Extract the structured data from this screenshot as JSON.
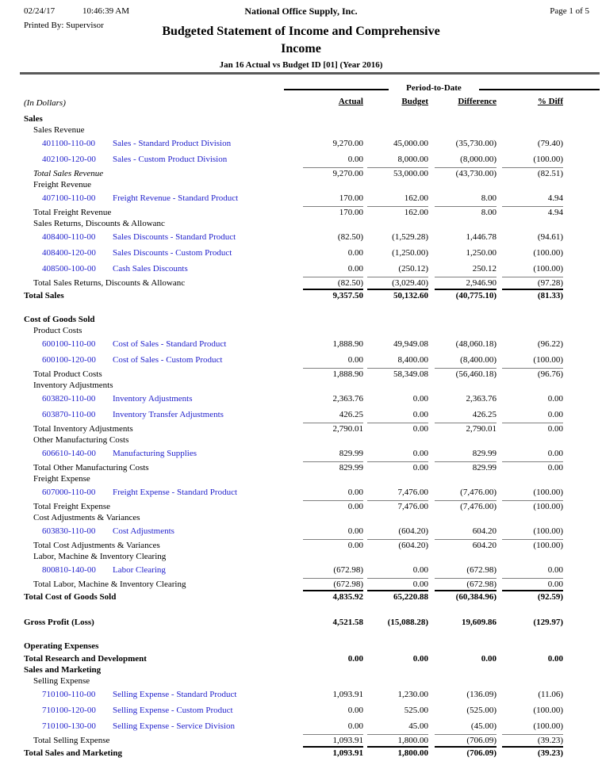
{
  "page_header": {
    "date": "02/24/17",
    "time": "10:46:39 AM",
    "company": "National Office Supply, Inc.",
    "page_label": "Page 1 of 5",
    "printed_by": "Printed By: Supervisor",
    "title_line1": "Budgeted Statement of Income and Comprehensive",
    "title_line2": "Income",
    "subtitle": "Jan 16 Actual vs Budget ID [01] (Year 2016)"
  },
  "table": {
    "group_header": "Period-to-Date",
    "in_dollars_label": "(In Dollars)",
    "columns": [
      "Actual",
      "Budget",
      "Difference",
      "% Diff"
    ],
    "rows": [
      {
        "t": "section",
        "label": "Sales"
      },
      {
        "t": "label",
        "label": "Sales Revenue"
      },
      {
        "t": "account",
        "code": "401100-110-00",
        "label": "Sales - Standard Product Division",
        "v": [
          "9,270.00",
          "45,000.00",
          "(35,730.00)",
          "(79.40)"
        ]
      },
      {
        "t": "account",
        "code": "402100-120-00",
        "label": "Sales - Custom Product Division",
        "v": [
          "0.00",
          "8,000.00",
          "(8,000.00)",
          "(100.00)"
        ]
      },
      {
        "t": "total",
        "label": "Total Sales Revenue",
        "italic": true,
        "line": "thin",
        "v": [
          "9,270.00",
          "53,000.00",
          "(43,730.00)",
          "(82.51)"
        ]
      },
      {
        "t": "label",
        "label": "Freight Revenue"
      },
      {
        "t": "account",
        "code": "407100-110-00",
        "label": "Freight Revenue  - Standard Product",
        "v": [
          "170.00",
          "162.00",
          "8.00",
          "4.94"
        ]
      },
      {
        "t": "total",
        "label": "Total Freight Revenue",
        "line": "thin",
        "v": [
          "170.00",
          "162.00",
          "8.00",
          "4.94"
        ]
      },
      {
        "t": "label",
        "label": "Sales Returns, Discounts & Allowanc"
      },
      {
        "t": "account",
        "code": "408400-110-00",
        "label": "Sales Discounts - Standard Product",
        "v": [
          "(82.50)",
          "(1,529.28)",
          "1,446.78",
          "(94.61)"
        ]
      },
      {
        "t": "account",
        "code": "408400-120-00",
        "label": "Sales Discounts - Custom Product",
        "v": [
          "0.00",
          "(1,250.00)",
          "1,250.00",
          "(100.00)"
        ]
      },
      {
        "t": "account",
        "code": "408500-100-00",
        "label": "Cash Sales Discounts",
        "v": [
          "0.00",
          "(250.12)",
          "250.12",
          "(100.00)"
        ]
      },
      {
        "t": "total",
        "label": "Total Sales Returns, Discounts & Allowanc",
        "line": "thin",
        "v": [
          "(82.50)",
          "(3,029.40)",
          "2,946.90",
          "(97.28)"
        ]
      },
      {
        "t": "grand",
        "label": "Total Sales",
        "line": "thick",
        "v": [
          "9,357.50",
          "50,132.60",
          "(40,775.10)",
          "(81.33)"
        ]
      },
      {
        "t": "spacer"
      },
      {
        "t": "section",
        "label": "Cost of Goods Sold"
      },
      {
        "t": "label",
        "label": "Product Costs"
      },
      {
        "t": "account",
        "code": "600100-110-00",
        "label": "Cost of Sales - Standard Product",
        "v": [
          "1,888.90",
          "49,949.08",
          "(48,060.18)",
          "(96.22)"
        ]
      },
      {
        "t": "account",
        "code": "600100-120-00",
        "label": "Cost of Sales - Custom Product",
        "v": [
          "0.00",
          "8,400.00",
          "(8,400.00)",
          "(100.00)"
        ]
      },
      {
        "t": "total",
        "label": "Total Product Costs",
        "line": "thin",
        "v": [
          "1,888.90",
          "58,349.08",
          "(56,460.18)",
          "(96.76)"
        ]
      },
      {
        "t": "label",
        "label": "Inventory Adjustments"
      },
      {
        "t": "account",
        "code": "603820-110-00",
        "label": "Inventory Adjustments",
        "v": [
          "2,363.76",
          "0.00",
          "2,363.76",
          "0.00"
        ]
      },
      {
        "t": "account",
        "code": "603870-110-00",
        "label": "Inventory Transfer Adjustments",
        "v": [
          "426.25",
          "0.00",
          "426.25",
          "0.00"
        ]
      },
      {
        "t": "total",
        "label": "Total Inventory Adjustments",
        "line": "thin",
        "v": [
          "2,790.01",
          "0.00",
          "2,790.01",
          "0.00"
        ]
      },
      {
        "t": "label",
        "label": "Other Manufacturing Costs"
      },
      {
        "t": "account",
        "code": "606610-140-00",
        "label": "Manufacturing Supplies",
        "v": [
          "829.99",
          "0.00",
          "829.99",
          "0.00"
        ]
      },
      {
        "t": "total",
        "label": "Total Other Manufacturing Costs",
        "line": "thin",
        "v": [
          "829.99",
          "0.00",
          "829.99",
          "0.00"
        ]
      },
      {
        "t": "label",
        "label": "Freight Expense"
      },
      {
        "t": "account",
        "code": "607000-110-00",
        "label": "Freight Expense - Standard Product",
        "v": [
          "0.00",
          "7,476.00",
          "(7,476.00)",
          "(100.00)"
        ]
      },
      {
        "t": "total",
        "label": "Total Freight Expense",
        "line": "thin",
        "v": [
          "0.00",
          "7,476.00",
          "(7,476.00)",
          "(100.00)"
        ]
      },
      {
        "t": "label",
        "label": "Cost Adjustments & Variances"
      },
      {
        "t": "account",
        "code": "603830-110-00",
        "label": "Cost Adjustments",
        "v": [
          "0.00",
          "(604.20)",
          "604.20",
          "(100.00)"
        ]
      },
      {
        "t": "total",
        "label": "Total Cost Adjustments & Variances",
        "line": "thin",
        "v": [
          "0.00",
          "(604.20)",
          "604.20",
          "(100.00)"
        ]
      },
      {
        "t": "label",
        "label": "Labor, Machine & Inventory Clearing"
      },
      {
        "t": "account",
        "code": "800810-140-00",
        "label": "Labor Clearing",
        "v": [
          "(672.98)",
          "0.00",
          "(672.98)",
          "0.00"
        ]
      },
      {
        "t": "total",
        "label": "Total Labor, Machine & Inventory Clearing",
        "line": "thin",
        "v": [
          "(672.98)",
          "0.00",
          "(672.98)",
          "0.00"
        ]
      },
      {
        "t": "grand",
        "label": "Total Cost of Goods Sold",
        "line": "thick",
        "v": [
          "4,835.92",
          "65,220.88",
          "(60,384.96)",
          "(92.59)"
        ]
      },
      {
        "t": "spacer"
      },
      {
        "t": "grand",
        "label": "Gross Profit (Loss)",
        "v": [
          "4,521.58",
          "(15,088.28)",
          "19,609.86",
          "(129.97)"
        ]
      },
      {
        "t": "spacer"
      },
      {
        "t": "section",
        "label": "Operating Expenses"
      },
      {
        "t": "grand",
        "label": "Total Research and Development",
        "v": [
          "0.00",
          "0.00",
          "0.00",
          "0.00"
        ]
      },
      {
        "t": "section",
        "label": "Sales and Marketing"
      },
      {
        "t": "label",
        "label": "Selling Expense"
      },
      {
        "t": "account",
        "code": "710100-110-00",
        "label": "Selling Expense - Standard Product",
        "v": [
          "1,093.91",
          "1,230.00",
          "(136.09)",
          "(11.06)"
        ]
      },
      {
        "t": "account",
        "code": "710100-120-00",
        "label": "Selling Expense - Custom Product",
        "v": [
          "0.00",
          "525.00",
          "(525.00)",
          "(100.00)"
        ]
      },
      {
        "t": "account",
        "code": "710100-130-00",
        "label": "Selling Expense - Service Division",
        "v": [
          "0.00",
          "45.00",
          "(45.00)",
          "(100.00)"
        ]
      },
      {
        "t": "total",
        "label": "Total Selling Expense",
        "line": "thin",
        "v": [
          "1,093.91",
          "1,800.00",
          "(706.09)",
          "(39.23)"
        ]
      },
      {
        "t": "grand",
        "label": "Total Sales and Marketing",
        "line": "thick",
        "v": [
          "1,093.91",
          "1,800.00",
          "(706.09)",
          "(39.23)"
        ]
      }
    ]
  },
  "colors": {
    "link_blue": "#2222cc",
    "header_rule": "#595959",
    "subtotal_line": "#7f7f7f",
    "total_line": "#000000"
  }
}
